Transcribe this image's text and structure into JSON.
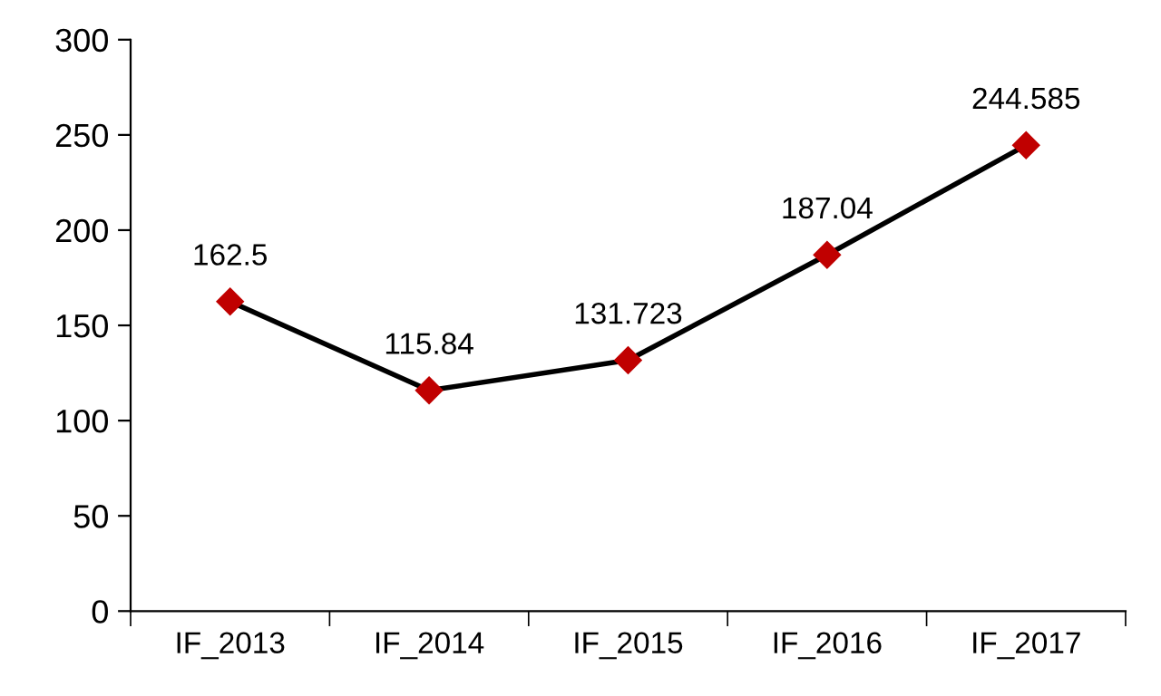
{
  "chart_data": {
    "type": "line",
    "categories": [
      "IF_2013",
      "IF_2014",
      "IF_2015",
      "IF_2016",
      "IF_2017"
    ],
    "values": [
      162.5,
      115.84,
      131.723,
      187.04,
      244.585
    ],
    "color": "#000000",
    "colors": [
      "#c00000",
      "#c00000",
      "#c00000",
      "#c00000",
      "#c00000"
    ],
    "marker": "diamond",
    "line_style": "solid",
    "data_labels": true,
    "ylim": [
      0,
      300
    ],
    "yticks": [
      0,
      50,
      100,
      150,
      200,
      250,
      300
    ],
    "grid": false,
    "legend": false
  }
}
